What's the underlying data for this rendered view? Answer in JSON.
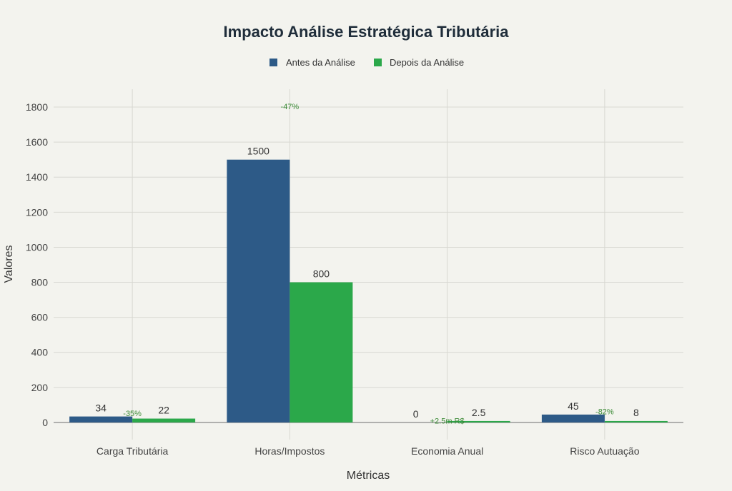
{
  "chart_data": {
    "type": "bar",
    "title": "Impacto Análise Estratégica Tributária",
    "xlabel": "Métricas",
    "ylabel": "Valores",
    "categories": [
      "Carga Tributária",
      "Horas/Impostos",
      "Economia Anual",
      "Risco Autuação"
    ],
    "series": [
      {
        "name": "Antes da Análise",
        "color": "#2d5a87",
        "values": [
          34,
          1500,
          0,
          45
        ],
        "labels": [
          "34",
          "1500",
          "0",
          "45"
        ]
      },
      {
        "name": "Depois da Análise",
        "color": "#2ba84a",
        "values": [
          22,
          800,
          2.5,
          8
        ],
        "labels": [
          "22",
          "800",
          "2.5",
          "8"
        ]
      }
    ],
    "ylim": [
      -98,
      1902
    ],
    "yticks": [
      0,
      200,
      400,
      600,
      800,
      1000,
      1200,
      1400,
      1600,
      1800
    ],
    "grid": true,
    "legend_position": "top-center",
    "annotations": [
      {
        "text": "-35%",
        "category": 0,
        "y": 48,
        "color": "#3a8a35"
      },
      {
        "text": "-47%",
        "category": 1,
        "y": 1800,
        "color": "#3a8a35"
      },
      {
        "text": "+2.5m R$",
        "category": 2,
        "y": 5,
        "color": "#3a8a35"
      },
      {
        "text": "-82%",
        "category": 3,
        "y": 58,
        "color": "#3a8a35"
      }
    ]
  }
}
